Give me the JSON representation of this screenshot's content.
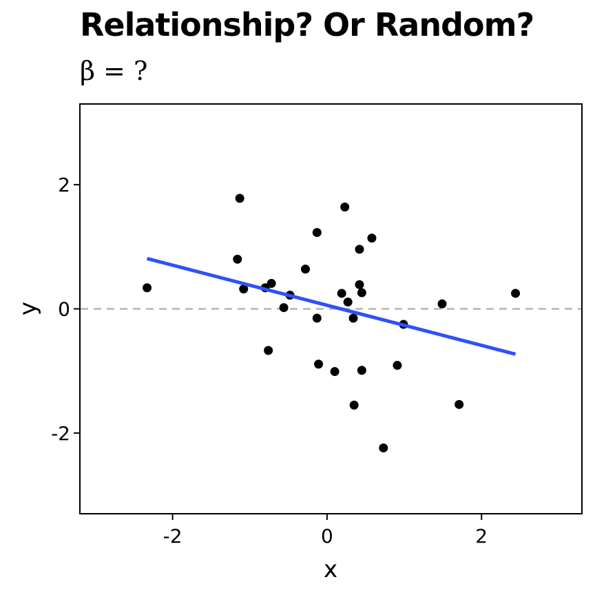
{
  "chart_data": {
    "type": "scatter",
    "title": "Relationship? Or Random?",
    "subtitle": "β = ?",
    "xlabel": "x",
    "ylabel": "y",
    "xlim": [
      -3.2,
      3.3
    ],
    "ylim": [
      -3.3,
      3.3
    ],
    "x_ticks": [
      -2,
      0,
      2
    ],
    "y_ticks": [
      -2,
      0,
      2
    ],
    "tick_labels_x": [
      "-2",
      "0",
      "2"
    ],
    "tick_labels_y": [
      "-2",
      "0",
      "2"
    ],
    "grid": false,
    "reference_line": {
      "y": 0,
      "style": "dashed",
      "color": "#b3b3b3"
    },
    "points": [
      {
        "x": -2.33,
        "y": 0.34
      },
      {
        "x": -1.13,
        "y": 1.78
      },
      {
        "x": -1.16,
        "y": 0.8
      },
      {
        "x": -1.08,
        "y": 0.32
      },
      {
        "x": -0.8,
        "y": 0.34
      },
      {
        "x": -0.72,
        "y": 0.41
      },
      {
        "x": -0.76,
        "y": -0.67
      },
      {
        "x": -0.48,
        "y": 0.22
      },
      {
        "x": -0.56,
        "y": 0.02
      },
      {
        "x": -0.28,
        "y": 0.64
      },
      {
        "x": -0.13,
        "y": 1.23
      },
      {
        "x": -0.13,
        "y": -0.15
      },
      {
        "x": -0.11,
        "y": -0.89
      },
      {
        "x": 0.1,
        "y": -1.01
      },
      {
        "x": 0.19,
        "y": 0.25
      },
      {
        "x": 0.23,
        "y": 1.64
      },
      {
        "x": 0.27,
        "y": 0.11
      },
      {
        "x": 0.34,
        "y": -0.15
      },
      {
        "x": 0.35,
        "y": -1.55
      },
      {
        "x": 0.42,
        "y": 0.96
      },
      {
        "x": 0.42,
        "y": 0.39
      },
      {
        "x": 0.45,
        "y": 0.26
      },
      {
        "x": 0.45,
        "y": -0.99
      },
      {
        "x": 0.58,
        "y": 1.14
      },
      {
        "x": 0.73,
        "y": -2.24
      },
      {
        "x": 0.91,
        "y": -0.91
      },
      {
        "x": 0.99,
        "y": -0.25
      },
      {
        "x": 1.49,
        "y": 0.08
      },
      {
        "x": 1.71,
        "y": -1.54
      },
      {
        "x": 2.44,
        "y": 0.25
      }
    ],
    "fit_line": {
      "x": [
        -2.33,
        2.44
      ],
      "y": [
        0.81,
        -0.73
      ],
      "color": "#3050f8"
    },
    "point_color": "#000000"
  }
}
